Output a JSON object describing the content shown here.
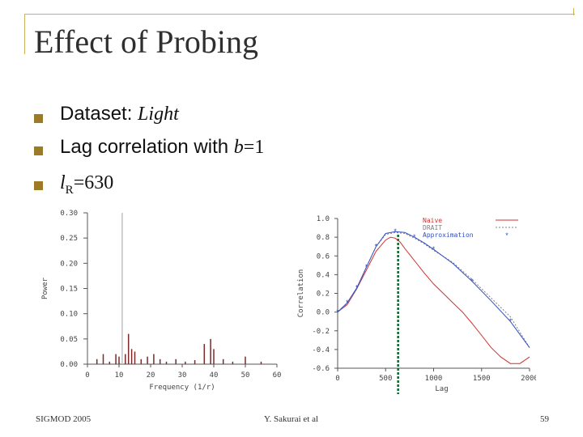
{
  "slide": {
    "title": "Effect of Probing",
    "bullets": [
      {
        "prefix": "Dataset: ",
        "emph": "Light"
      },
      {
        "prefix": "Lag correlation with ",
        "emph": "b",
        "suffix": "=1"
      },
      {
        "emph": "l",
        "sub": "R",
        "suffix": "=630"
      }
    ],
    "accent_color": "#9b7a28"
  },
  "footer": {
    "left": "SIGMOD 2005",
    "center": "Y. Sakurai et al",
    "right": "59"
  },
  "chart_data": [
    {
      "type": "bar",
      "xlabel": "Frequency (1/r)",
      "ylabel": "Power",
      "xlim": [
        0,
        60
      ],
      "ylim": [
        0,
        0.3
      ],
      "xticks": [
        "0",
        "10",
        "20",
        "30",
        "40",
        "50",
        "60"
      ],
      "yticks": [
        "0.00",
        "0.05",
        "0.10",
        "0.15",
        "0.20",
        "0.25",
        "0.30"
      ],
      "x": [
        3,
        5,
        7,
        9,
        10,
        11,
        12,
        13,
        14,
        15,
        17,
        19,
        21,
        23,
        25,
        28,
        31,
        34,
        37,
        39,
        40,
        43,
        46,
        50,
        55
      ],
      "values": [
        0.01,
        0.02,
        0.005,
        0.02,
        0.015,
        0.3,
        0.02,
        0.06,
        0.03,
        0.025,
        0.01,
        0.015,
        0.02,
        0.01,
        0.005,
        0.01,
        0.005,
        0.008,
        0.04,
        0.05,
        0.03,
        0.01,
        0.005,
        0.015,
        0.005
      ],
      "colors": {
        "bar": "#7a2a2a",
        "highlight": "#c0c0c0",
        "axis": "#555555"
      }
    },
    {
      "type": "line",
      "xlabel": "Lag",
      "ylabel": "Correlation",
      "xlim": [
        0,
        2000
      ],
      "ylim": [
        -0.6,
        1.0
      ],
      "xticks": [
        "0",
        "500",
        "1000",
        "1500",
        "2000"
      ],
      "yticks": [
        "1.0",
        "0.8",
        "0.6",
        "0.4",
        "0.2",
        "0.0",
        "-0.2",
        "-0.4",
        "-0.6"
      ],
      "legend_position": "top-right",
      "marker_lag": 630,
      "series": [
        {
          "name": "Naive",
          "color": "#d03030",
          "x": [
            0,
            100,
            200,
            300,
            400,
            500,
            550,
            600,
            650,
            700,
            800,
            900,
            1000,
            1100,
            1200,
            1300,
            1400,
            1500,
            1600,
            1700,
            1800,
            1900,
            2000
          ],
          "y": [
            0.0,
            0.08,
            0.25,
            0.45,
            0.65,
            0.77,
            0.8,
            0.79,
            0.75,
            0.68,
            0.55,
            0.42,
            0.3,
            0.2,
            0.1,
            0.0,
            -0.12,
            -0.25,
            -0.38,
            -0.48,
            -0.55,
            -0.55,
            -0.48
          ]
        },
        {
          "name": "DRAIT",
          "color": "#808080",
          "x": [
            0,
            100,
            200,
            300,
            400,
            500,
            600,
            700,
            800,
            900,
            1000,
            1200,
            1400,
            1600,
            1800,
            2000
          ],
          "y": [
            0.0,
            0.09,
            0.25,
            0.48,
            0.7,
            0.83,
            0.85,
            0.84,
            0.79,
            0.73,
            0.66,
            0.53,
            0.35,
            0.15,
            -0.05,
            -0.38
          ]
        },
        {
          "name": "Approximation",
          "color": "#3050c0",
          "x": [
            0,
            100,
            200,
            300,
            400,
            500,
            600,
            700,
            800,
            900,
            1000,
            1200,
            1400,
            1600,
            1800,
            2000
          ],
          "y": [
            0.0,
            0.1,
            0.26,
            0.48,
            0.7,
            0.84,
            0.86,
            0.85,
            0.8,
            0.74,
            0.67,
            0.52,
            0.33,
            0.12,
            -0.1,
            -0.38
          ]
        }
      ]
    }
  ]
}
